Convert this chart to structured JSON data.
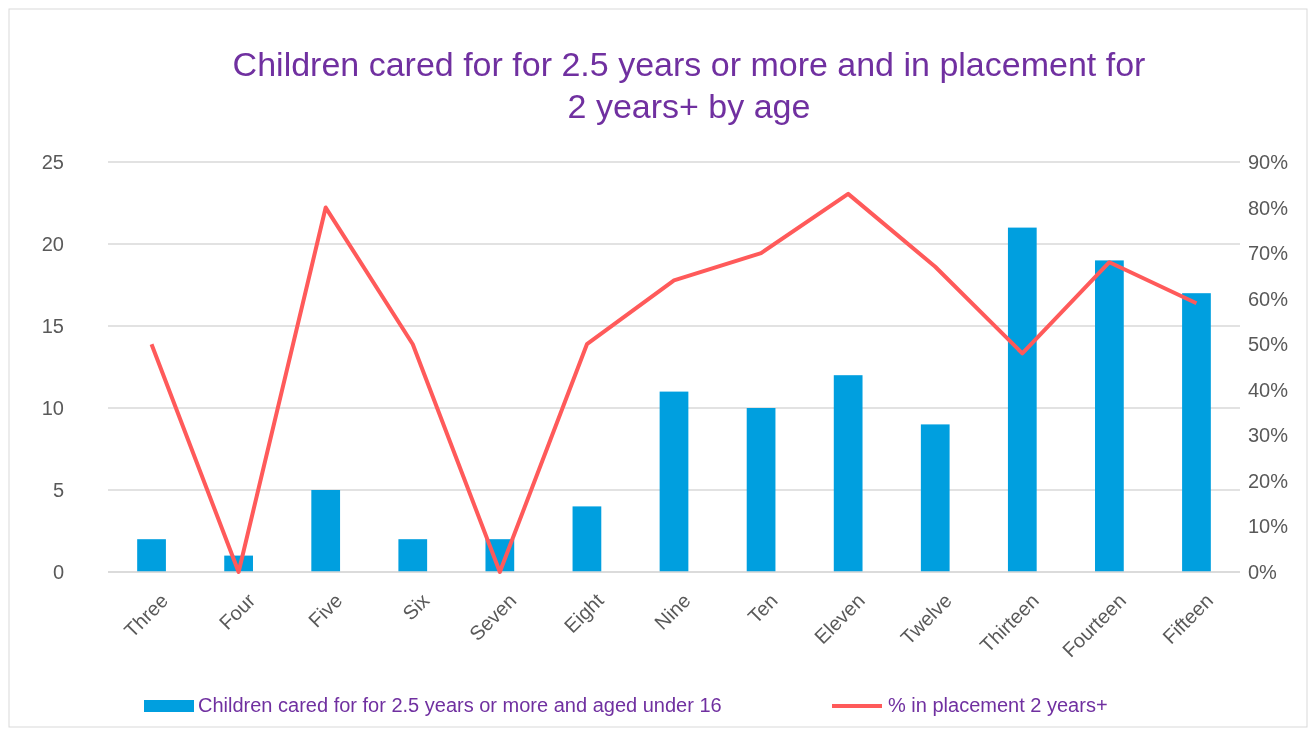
{
  "chart_data": {
    "type": "bar",
    "title": "Children cared for for 2.5 years or more and in placement for 2 years+ by age",
    "categories": [
      "Three",
      "Four",
      "Five",
      "Six",
      "Seven",
      "Eight",
      "Nine",
      "Ten",
      "Eleven",
      "Twelve",
      "Thirteen",
      "Fourteen",
      "Fifteen"
    ],
    "series": [
      {
        "name": "Children cared for for 2.5 years or more and aged under 16",
        "color": "#009fdf",
        "values": [
          2,
          1,
          5,
          2,
          2,
          4,
          11,
          10,
          12,
          9,
          21,
          19,
          17
        ]
      },
      {
        "name": "% in placement 2 years+",
        "type": "line",
        "axis": "y2",
        "color": "#ff5a5a",
        "values": [
          50,
          0,
          80,
          50,
          0,
          50,
          64,
          70,
          83,
          67,
          48,
          68,
          59
        ]
      }
    ],
    "ylim": [
      0,
      25
    ],
    "yticks": [
      0,
      5,
      10,
      15,
      20,
      25
    ],
    "y2lim": [
      0,
      90
    ],
    "y2ticks": [
      {
        "value": 0,
        "label": "0%"
      },
      {
        "value": 10,
        "label": "10%"
      },
      {
        "value": 20,
        "label": "20%"
      },
      {
        "value": 30,
        "label": "30%"
      },
      {
        "value": 40,
        "label": "40%"
      },
      {
        "value": 50,
        "label": "50%"
      },
      {
        "value": 60,
        "label": "60%"
      },
      {
        "value": 70,
        "label": "70%"
      },
      {
        "value": 80,
        "label": "80%"
      },
      {
        "value": 90,
        "label": "90%"
      }
    ],
    "grid": "y",
    "legend": "bottom",
    "marker": "none",
    "line_style": "solid"
  }
}
